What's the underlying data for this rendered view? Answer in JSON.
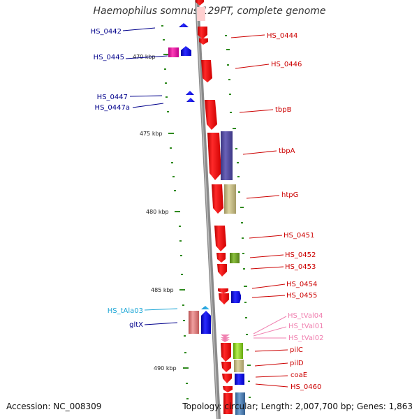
{
  "title": "Haemophilus somnus 129PT, complete genome",
  "accession": "Accession: NC_008309",
  "topology": "Topology: circular; Length: 2,007,700 bp; Genes: 1,863",
  "kbp_labels": [
    "470 kbp",
    "475 kbp",
    "480 kbp",
    "485 kbp",
    "490 kbp"
  ],
  "left_genes": [
    {
      "label": "HS_0442",
      "color": "#00008b"
    },
    {
      "label": "HS_0445",
      "color": "#00008b"
    },
    {
      "label": "HS_0447",
      "color": "#00008b"
    },
    {
      "label": "HS_0447a",
      "color": "#00008b"
    },
    {
      "label": "HS_tAla03",
      "color": "#1ca6d6"
    },
    {
      "label": "gltX",
      "color": "#00008b"
    }
  ],
  "right_genes": [
    {
      "label": "HS_0444",
      "color": "#cc0000"
    },
    {
      "label": "HS_0446",
      "color": "#cc0000"
    },
    {
      "label": "tbpB",
      "color": "#cc0000"
    },
    {
      "label": "tbpA",
      "color": "#cc0000"
    },
    {
      "label": "htpG",
      "color": "#cc0000"
    },
    {
      "label": "HS_0451",
      "color": "#cc0000"
    },
    {
      "label": "HS_0452",
      "color": "#cc0000"
    },
    {
      "label": "HS_0453",
      "color": "#cc0000"
    },
    {
      "label": "HS_0454",
      "color": "#cc0000"
    },
    {
      "label": "HS_0455",
      "color": "#cc0000"
    },
    {
      "label": "HS_tVal04",
      "color": "#f080b0"
    },
    {
      "label": "HS_tVal01",
      "color": "#f080b0"
    },
    {
      "label": "HS_tVal02",
      "color": "#f080b0"
    },
    {
      "label": "pilC",
      "color": "#cc0000"
    },
    {
      "label": "pilD",
      "color": "#cc0000"
    },
    {
      "label": "coaE",
      "color": "#cc0000"
    },
    {
      "label": "HS_0460",
      "color": "#cc0000"
    }
  ]
}
